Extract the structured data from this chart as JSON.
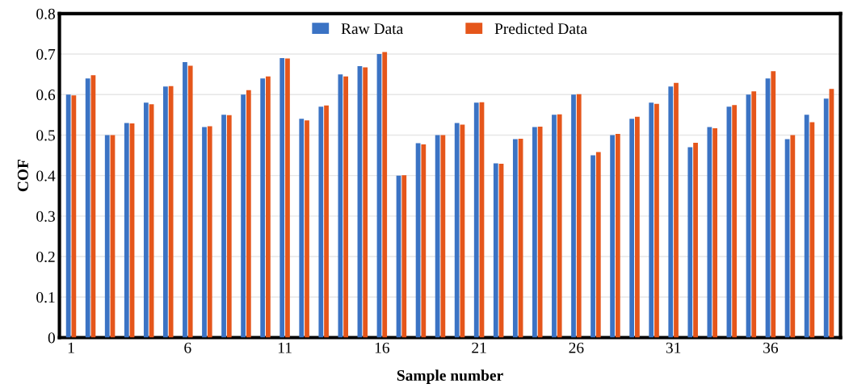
{
  "chart_data": {
    "type": "bar",
    "xlabel": "Sample number",
    "ylabel": "COF",
    "categories": [
      "1",
      null,
      null,
      null,
      null,
      null,
      "6",
      null,
      null,
      null,
      null,
      "11",
      null,
      null,
      null,
      null,
      "16",
      null,
      null,
      null,
      null,
      "21",
      null,
      null,
      null,
      null,
      "26",
      null,
      null,
      null,
      null,
      "31",
      null,
      null,
      null,
      null,
      "36",
      null,
      null,
      null
    ],
    "series": [
      {
        "name": "Raw Data",
        "color": "#3b73c4",
        "values": [
          0.6,
          0.64,
          0.5,
          0.53,
          0.58,
          0.62,
          0.68,
          0.52,
          0.55,
          0.6,
          0.64,
          0.69,
          0.54,
          0.57,
          0.65,
          0.67,
          0.7,
          0.4,
          0.48,
          0.5,
          0.53,
          0.58,
          0.43,
          0.49,
          0.52,
          0.55,
          0.6,
          0.45,
          0.5,
          0.54,
          0.58,
          0.62,
          0.47,
          0.52,
          0.57,
          0.6,
          0.64,
          0.49,
          0.55,
          0.59
        ]
      },
      {
        "name": "Predicted Data",
        "color": "#e5561b",
        "values": [
          0.598,
          0.648,
          0.5,
          0.529,
          0.576,
          0.621,
          0.671,
          0.522,
          0.549,
          0.611,
          0.645,
          0.689,
          0.536,
          0.573,
          0.645,
          0.667,
          0.705,
          0.401,
          0.477,
          0.5,
          0.526,
          0.581,
          0.429,
          0.491,
          0.521,
          0.551,
          0.601,
          0.458,
          0.503,
          0.545,
          0.577,
          0.629,
          0.481,
          0.517,
          0.574,
          0.608,
          0.658,
          0.5,
          0.532,
          0.614
        ]
      }
    ],
    "ylim": [
      0,
      0.8
    ],
    "yticks": [
      0,
      0.1,
      0.2,
      0.3,
      0.4,
      0.5,
      0.6,
      0.7,
      0.8
    ],
    "grid": "y",
    "legend": "top"
  }
}
